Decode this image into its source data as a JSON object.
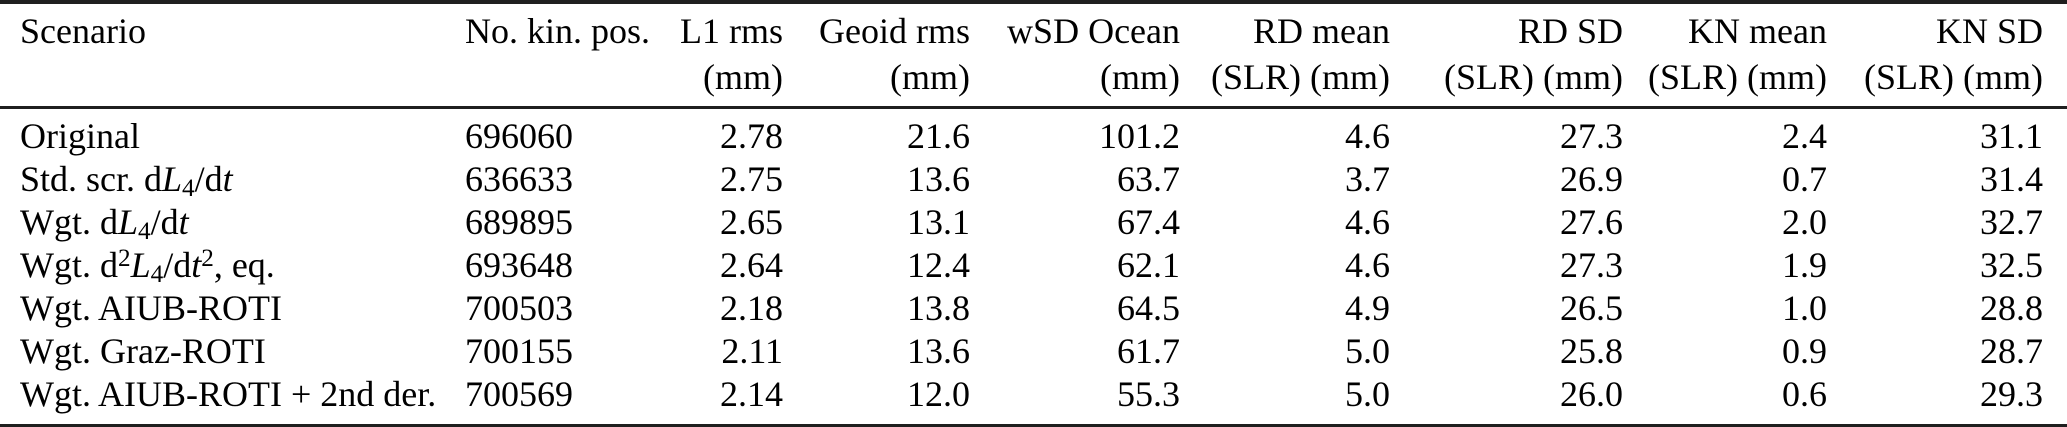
{
  "colors": {
    "background": "#ffffff",
    "text": "#000000",
    "rule": "#1f1f1f"
  },
  "table": {
    "columns": [
      {
        "key": "scenario",
        "label": "Scenario",
        "unit": "",
        "align": "left"
      },
      {
        "key": "no_kin_pos",
        "label": "No. kin. pos.",
        "unit": "",
        "align": "left"
      },
      {
        "key": "l1_rms",
        "label": "L1 rms",
        "unit": "(mm)",
        "align": "right"
      },
      {
        "key": "geoid_rms",
        "label": "Geoid rms",
        "unit": "(mm)",
        "align": "right"
      },
      {
        "key": "wsd_ocean",
        "label": "wSD Ocean",
        "unit": "(mm)",
        "align": "right"
      },
      {
        "key": "rd_mean",
        "label": "RD mean",
        "unit": "(SLR) (mm)",
        "align": "right"
      },
      {
        "key": "rd_sd",
        "label": "RD SD",
        "unit": "(SLR) (mm)",
        "align": "right"
      },
      {
        "key": "kn_mean",
        "label": "KN mean",
        "unit": "(SLR) (mm)",
        "align": "right"
      },
      {
        "key": "kn_sd",
        "label": "KN SD",
        "unit": "(SLR) (mm)",
        "align": "right"
      }
    ],
    "rows": [
      {
        "scenario_text": "Original",
        "scenario_segments": [
          {
            "t": "Original",
            "s": "n"
          }
        ],
        "values": [
          "696060",
          "2.78",
          "21.6",
          "101.2",
          "4.6",
          "27.3",
          "2.4",
          "31.1"
        ]
      },
      {
        "scenario_text": "Std. scr. dL4/dt",
        "scenario_segments": [
          {
            "t": "Std. scr. d",
            "s": "n"
          },
          {
            "t": "L",
            "s": "i"
          },
          {
            "t": "4",
            "s": "sub"
          },
          {
            "t": "/d",
            "s": "n"
          },
          {
            "t": "t",
            "s": "i"
          }
        ],
        "values": [
          "636633",
          "2.75",
          "13.6",
          "63.7",
          "3.7",
          "26.9",
          "0.7",
          "31.4"
        ]
      },
      {
        "scenario_text": "Wgt. dL4/dt",
        "scenario_segments": [
          {
            "t": "Wgt. d",
            "s": "n"
          },
          {
            "t": "L",
            "s": "i"
          },
          {
            "t": "4",
            "s": "sub"
          },
          {
            "t": "/d",
            "s": "n"
          },
          {
            "t": "t",
            "s": "i"
          }
        ],
        "values": [
          "689895",
          "2.65",
          "13.1",
          "67.4",
          "4.6",
          "27.6",
          "2.0",
          "32.7"
        ]
      },
      {
        "scenario_text": "Wgt. d2L4/dt2, eq.",
        "scenario_segments": [
          {
            "t": "Wgt. d",
            "s": "n"
          },
          {
            "t": "2",
            "s": "sup"
          },
          {
            "t": "L",
            "s": "i"
          },
          {
            "t": "4",
            "s": "sub"
          },
          {
            "t": "/d",
            "s": "n"
          },
          {
            "t": "t",
            "s": "i"
          },
          {
            "t": "2",
            "s": "sup"
          },
          {
            "t": ", eq.",
            "s": "n"
          }
        ],
        "values": [
          "693648",
          "2.64",
          "12.4",
          "62.1",
          "4.6",
          "27.3",
          "1.9",
          "32.5"
        ]
      },
      {
        "scenario_text": "Wgt. AIUB-ROTI",
        "scenario_segments": [
          {
            "t": "Wgt. AIUB-ROTI",
            "s": "n"
          }
        ],
        "values": [
          "700503",
          "2.18",
          "13.8",
          "64.5",
          "4.9",
          "26.5",
          "1.0",
          "28.8"
        ]
      },
      {
        "scenario_text": "Wgt. Graz-ROTI",
        "scenario_segments": [
          {
            "t": "Wgt. Graz-ROTI",
            "s": "n"
          }
        ],
        "values": [
          "700155",
          "2.11",
          "13.6",
          "61.7",
          "5.0",
          "25.8",
          "0.9",
          "28.7"
        ]
      },
      {
        "scenario_text": "Wgt. AIUB-ROTI + 2nd der.",
        "scenario_segments": [
          {
            "t": "Wgt. AIUB-ROTI + 2nd der.",
            "s": "n"
          }
        ],
        "values": [
          "700569",
          "2.14",
          "12.0",
          "55.3",
          "5.0",
          "26.0",
          "0.6",
          "29.3"
        ]
      }
    ]
  }
}
